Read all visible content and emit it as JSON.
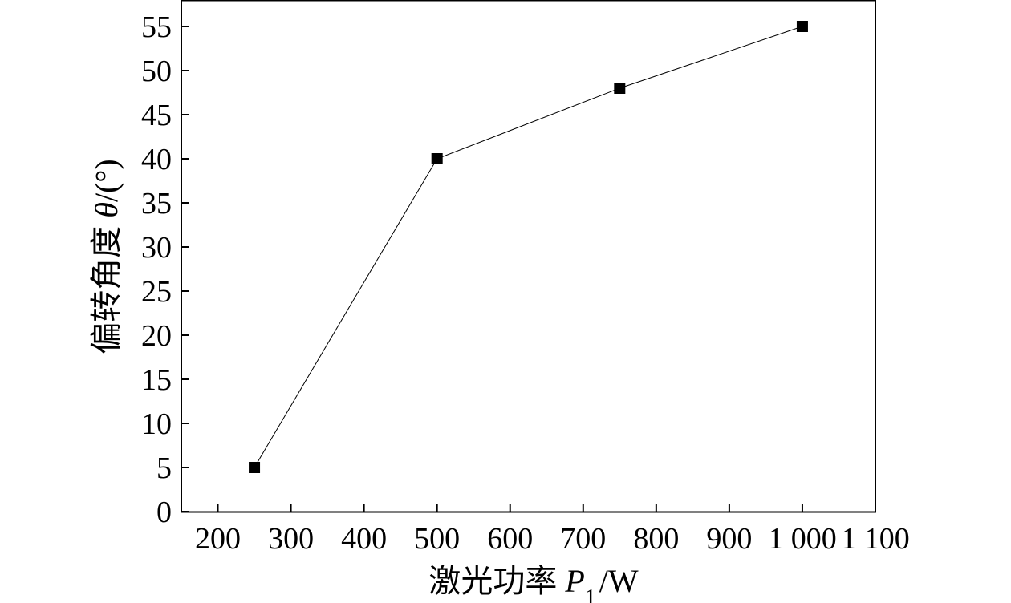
{
  "chart_data": {
    "type": "line",
    "x": [
      250,
      500,
      750,
      1000
    ],
    "series": [
      {
        "values": [
          5,
          40,
          48,
          55
        ],
        "marker": "square",
        "color": "#000000"
      }
    ],
    "xlabel": {
      "prefix": "激光功率 ",
      "var": "P",
      "sub": "1",
      "unit": "/W"
    },
    "ylabel": {
      "prefix": "偏转角度 ",
      "var": "θ",
      "unit": "/(°)"
    },
    "xlim": [
      150,
      1100
    ],
    "ylim": [
      0,
      58
    ],
    "xticks": [
      200,
      300,
      400,
      500,
      600,
      700,
      800,
      900,
      1000,
      1100
    ],
    "xtick_labels": [
      "200",
      "300",
      "400",
      "500",
      "600",
      "700",
      "800",
      "900",
      "1 000",
      "1 100"
    ],
    "yticks": [
      0,
      5,
      10,
      15,
      20,
      25,
      30,
      35,
      40,
      45,
      50,
      55
    ],
    "ytick_labels": [
      "0",
      "5",
      "10",
      "15",
      "20",
      "25",
      "30",
      "35",
      "40",
      "45",
      "50",
      "55"
    ],
    "grid": false,
    "legend": "none"
  }
}
